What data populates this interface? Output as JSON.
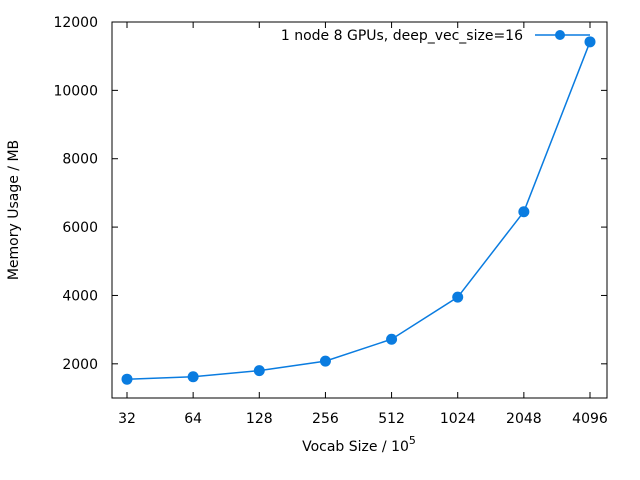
{
  "chart_data": {
    "type": "line",
    "categories": [
      "32",
      "64",
      "128",
      "256",
      "512",
      "1024",
      "2048",
      "4096"
    ],
    "series": [
      {
        "name": "1 node 8 GPUs, deep_vec_size=16",
        "values": [
          1550,
          1620,
          1800,
          2080,
          2720,
          3950,
          6450,
          11420
        ],
        "color": "#0a7ce0",
        "marker": "circle"
      }
    ],
    "xlabel_prefix": "Vocab Size / 10",
    "xlabel_exp": "5",
    "ylabel": "Memory Usage / MB",
    "ylim": [
      1000,
      12000
    ],
    "yticks": [
      2000,
      4000,
      6000,
      8000,
      10000,
      12000
    ],
    "legend_position": "top-right",
    "grid": false
  }
}
